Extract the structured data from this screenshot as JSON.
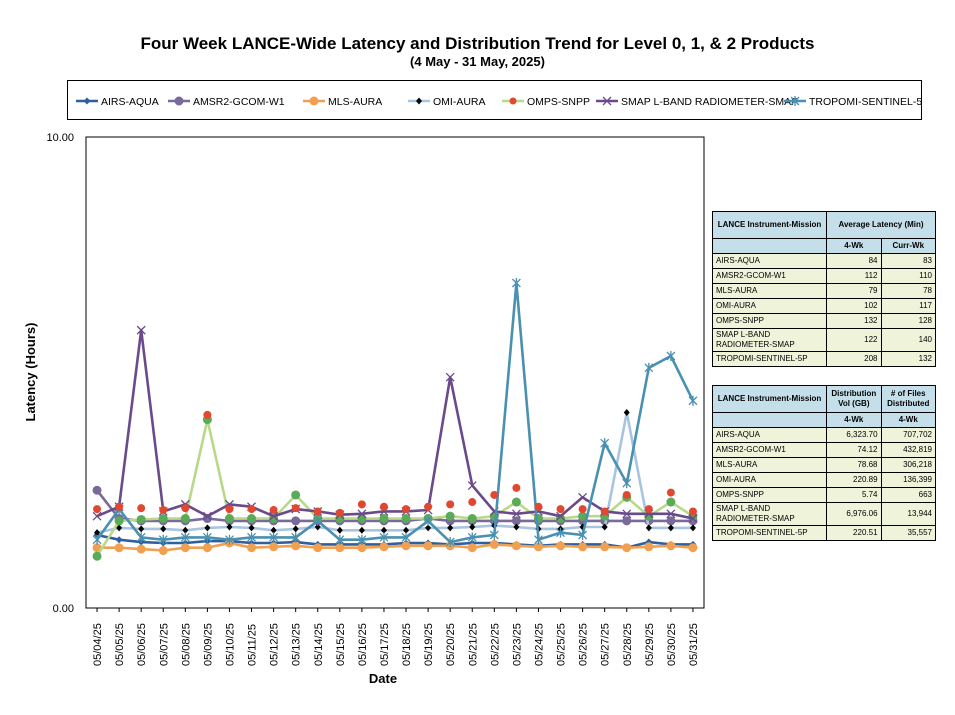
{
  "page": {
    "title": "Four Week LANCE-Wide Latency and Distribution Trend for Level 0, 1, & 2 Products",
    "subtitle": "(4  May   -  31  May,  2025)"
  },
  "chart_data": {
    "type": "line",
    "title": "Four Week LANCE-Wide Latency and Distribution Trend for Level 0, 1, & 2 Products",
    "xlabel": "Date",
    "ylabel": "Latency (Hours)",
    "ylim": [
      0,
      10
    ],
    "ytick_labels": [
      "0.00",
      "10.00"
    ],
    "categories": [
      "05/04/25",
      "05/05/25",
      "05/06/25",
      "05/07/25",
      "05/08/25",
      "05/09/25",
      "05/10/25",
      "05/11/25",
      "05/12/25",
      "05/13/25",
      "05/14/25",
      "05/15/25",
      "05/16/25",
      "05/17/25",
      "05/18/25",
      "05/19/25",
      "05/20/25",
      "05/21/25",
      "05/22/25",
      "05/23/25",
      "05/24/25",
      "05/25/25",
      "05/26/25",
      "05/27/25",
      "05/28/25",
      "05/29/25",
      "05/30/25",
      "05/31/25"
    ],
    "series": [
      {
        "name": "AIRS-AQUA",
        "color": "#2e5f9e",
        "marker": "diamond",
        "values": [
          1.55,
          1.45,
          1.4,
          1.38,
          1.38,
          1.42,
          1.42,
          1.38,
          1.38,
          1.4,
          1.35,
          1.35,
          1.35,
          1.35,
          1.38,
          1.38,
          1.35,
          1.38,
          1.38,
          1.35,
          1.32,
          1.35,
          1.35,
          1.35,
          1.28,
          1.4,
          1.35,
          1.35
        ]
      },
      {
        "name": "AMSR2-GCOM-W1",
        "color": "#7a6a9a",
        "marker": "circle",
        "values": [
          2.5,
          1.9,
          1.85,
          1.85,
          1.85,
          1.9,
          1.85,
          1.85,
          1.85,
          1.85,
          1.85,
          1.85,
          1.85,
          1.85,
          1.85,
          1.9,
          1.85,
          1.85,
          1.85,
          1.85,
          1.85,
          1.85,
          1.85,
          1.85,
          1.85,
          1.85,
          1.85,
          1.85
        ]
      },
      {
        "name": "MLS-AURA",
        "color": "#f0a050",
        "marker": "circle",
        "values": [
          1.28,
          1.28,
          1.25,
          1.22,
          1.28,
          1.28,
          1.38,
          1.28,
          1.3,
          1.32,
          1.28,
          1.28,
          1.28,
          1.3,
          1.32,
          1.32,
          1.32,
          1.28,
          1.35,
          1.32,
          1.3,
          1.32,
          1.3,
          1.3,
          1.28,
          1.3,
          1.32,
          1.28
        ]
      },
      {
        "name": "OMI-AURA",
        "color": "#000000",
        "marker": "smalldiamond",
        "values": [
          1.6,
          1.7,
          1.68,
          1.68,
          1.65,
          1.7,
          1.72,
          1.7,
          1.65,
          1.68,
          1.72,
          1.65,
          1.65,
          1.65,
          1.65,
          1.7,
          1.7,
          1.72,
          1.75,
          1.72,
          1.68,
          1.68,
          1.72,
          1.72,
          4.15,
          1.7,
          1.7,
          1.7
        ]
      },
      {
        "name": "OMPS-SNPP",
        "color": "#b8d88a",
        "marker": "circle",
        "values": [
          1.1,
          1.85,
          1.88,
          1.9,
          1.9,
          4.0,
          1.9,
          1.9,
          1.9,
          2.4,
          1.9,
          1.9,
          1.9,
          1.9,
          1.9,
          1.9,
          1.95,
          1.9,
          1.95,
          2.25,
          1.9,
          1.9,
          1.95,
          1.95,
          2.35,
          1.95,
          2.25,
          1.95
        ]
      },
      {
        "name": "SMAP L-BAND RADIOMETER-SMAP",
        "color": "#6a4a8a",
        "marker": "x",
        "values": [
          1.95,
          2.15,
          5.9,
          2.05,
          2.2,
          1.95,
          2.2,
          2.15,
          1.95,
          2.1,
          2.05,
          1.98,
          2.0,
          2.05,
          2.05,
          2.08,
          4.9,
          2.6,
          2.05,
          2.0,
          2.05,
          1.95,
          2.35,
          2.05,
          2.0,
          2.0,
          2.0,
          1.9
        ]
      },
      {
        "name": "TROPOMI-SENTINEL-5P",
        "color": "#4a90b0",
        "marker": "star",
        "values": [
          1.45,
          2.1,
          1.5,
          1.45,
          1.5,
          1.5,
          1.45,
          1.5,
          1.5,
          1.5,
          1.85,
          1.45,
          1.45,
          1.5,
          1.5,
          1.85,
          1.4,
          1.5,
          1.55,
          6.9,
          1.45,
          1.6,
          1.55,
          3.5,
          2.65,
          5.1,
          5.35,
          4.4
        ]
      },
      {
        "name": "OMPS-SNPP",
        "color": "#e04830",
        "marker": "dot",
        "legend": false,
        "values": [
          2.1,
          2.15,
          2.12,
          2.08,
          2.12,
          4.1,
          2.1,
          2.1,
          2.08,
          2.12,
          2.05,
          2.02,
          2.2,
          2.15,
          2.1,
          2.15,
          2.2,
          2.25,
          2.4,
          2.55,
          2.15,
          2.1,
          2.1,
          2.05,
          2.4,
          2.1,
          2.45,
          2.05
        ]
      }
    ],
    "legend_entries": [
      {
        "label": "AIRS-AQUA",
        "color": "#2e5f9e",
        "marker": "diamond"
      },
      {
        "label": "AMSR2-GCOM-W1",
        "color": "#7a6a9a",
        "marker": "circle"
      },
      {
        "label": "MLS-AURA",
        "color": "#f0a050",
        "marker": "circle"
      },
      {
        "label": "OMI-AURA",
        "color": "#a9c4e0",
        "marker": "smalldiamond"
      },
      {
        "label": "OMPS-SNPP",
        "color": "#b8d88a",
        "marker": "reddot"
      },
      {
        "label": "SMAP L-BAND RADIOMETER-SMAP",
        "color": "#6a4a8a",
        "marker": "x"
      },
      {
        "label": "TROPOMI-SENTINEL-5P",
        "color": "#4a90b0",
        "marker": "star"
      }
    ]
  },
  "latency_table": {
    "header_col1": "LANCE Instrument-Mission",
    "header_group": "Average Latency (Min)",
    "sub_headers": [
      "4-Wk",
      "Curr-Wk"
    ],
    "rows": [
      {
        "name": "AIRS-AQUA",
        "a": "84",
        "b": "83"
      },
      {
        "name": "AMSR2-GCOM-W1",
        "a": "112",
        "b": "110"
      },
      {
        "name": "MLS-AURA",
        "a": "79",
        "b": "78"
      },
      {
        "name": "OMI-AURA",
        "a": "102",
        "b": "117"
      },
      {
        "name": "OMPS-SNPP",
        "a": "132",
        "b": "128"
      },
      {
        "name": "SMAP L-BAND RADIOMETER-SMAP",
        "a": "122",
        "b": "140"
      },
      {
        "name": "TROPOMI-SENTINEL-5P",
        "a": "208",
        "b": "132"
      }
    ]
  },
  "distribution_table": {
    "header_col1": "LANCE Instrument-Mission",
    "header_col2": "Distribution Vol (GB)",
    "header_col3": "# of Files Distributed",
    "sub_headers": [
      "4-Wk",
      "4-Wk"
    ],
    "rows": [
      {
        "name": "AIRS-AQUA",
        "a": "6,323.70",
        "b": "707,702"
      },
      {
        "name": "AMSR2-GCOM-W1",
        "a": "74.12",
        "b": "432,819"
      },
      {
        "name": "MLS-AURA",
        "a": "78.68",
        "b": "306,218"
      },
      {
        "name": "OMI-AURA",
        "a": "220.89",
        "b": "136,399"
      },
      {
        "name": "OMPS-SNPP",
        "a": "5.74",
        "b": "663"
      },
      {
        "name": "SMAP L-BAND RADIOMETER-SMAP",
        "a": "6,976.06",
        "b": "13,944"
      },
      {
        "name": "TROPOMI-SENTINEL-5P",
        "a": "220.51",
        "b": "35,557"
      }
    ]
  }
}
